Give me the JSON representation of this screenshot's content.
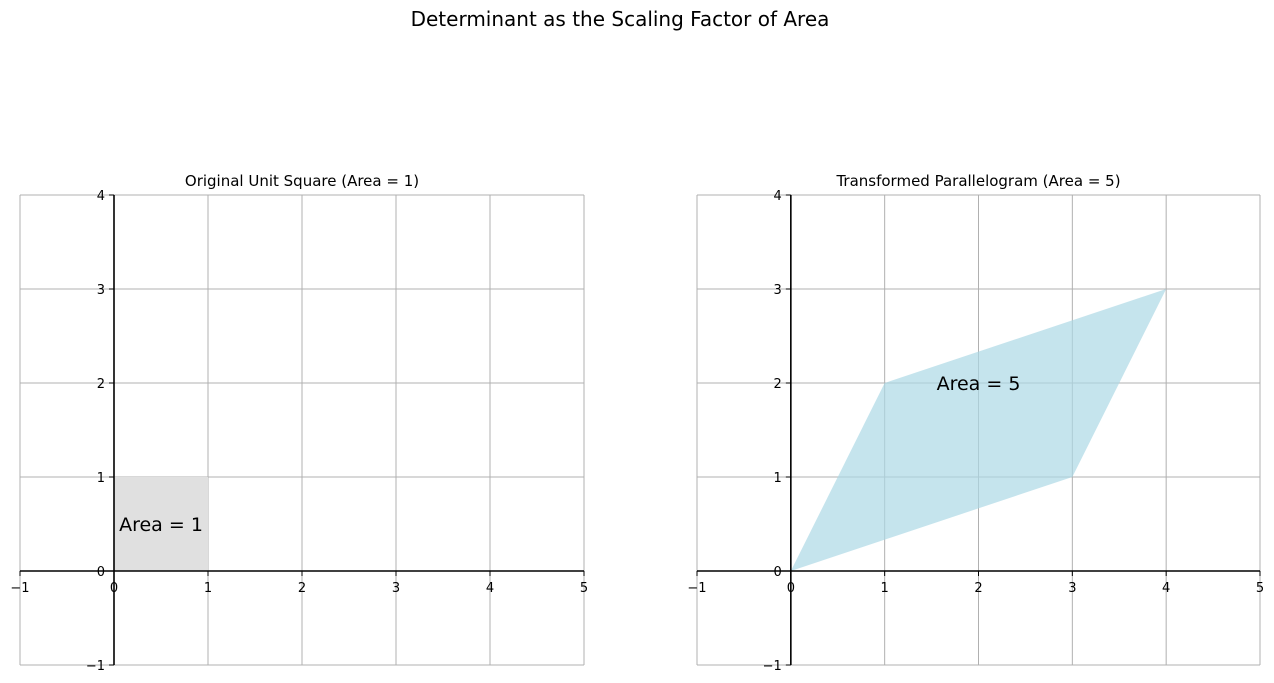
{
  "figure": {
    "suptitle": "Determinant as the Scaling Factor of Area"
  },
  "chart_data": [
    {
      "type": "area",
      "title": "Original Unit Square (Area = 1)",
      "xlabel": "",
      "ylabel": "",
      "xlim": [
        -1,
        5
      ],
      "ylim": [
        -1,
        4
      ],
      "xticks": [
        -1,
        0,
        1,
        2,
        3,
        4,
        5
      ],
      "yticks": [
        -1,
        0,
        1,
        2,
        3,
        4
      ],
      "xtick_labels": [
        "−1",
        "0",
        "1",
        "2",
        "3",
        "4",
        "5"
      ],
      "ytick_labels": [
        "−1",
        "0",
        "1",
        "2",
        "3",
        "4"
      ],
      "grid": true,
      "polygon": [
        [
          0,
          0
        ],
        [
          1,
          0
        ],
        [
          1,
          1
        ],
        [
          0,
          1
        ]
      ],
      "fill_color": "#e0e0e0",
      "annotation": {
        "text": "Area = 1",
        "x": 0.5,
        "y": 0.5
      }
    },
    {
      "type": "area",
      "title": "Transformed Parallelogram (Area = 5)",
      "xlabel": "",
      "ylabel": "",
      "xlim": [
        -1,
        5
      ],
      "ylim": [
        -1,
        4
      ],
      "xticks": [
        -1,
        0,
        1,
        2,
        3,
        4,
        5
      ],
      "yticks": [
        -1,
        0,
        1,
        2,
        3,
        4
      ],
      "xtick_labels": [
        "−1",
        "0",
        "1",
        "2",
        "3",
        "4",
        "5"
      ],
      "ytick_labels": [
        "−1",
        "0",
        "1",
        "2",
        "3",
        "4"
      ],
      "grid": true,
      "polygon": [
        [
          0,
          0
        ],
        [
          3,
          1
        ],
        [
          4,
          3
        ],
        [
          1,
          2
        ]
      ],
      "fill_color": "#add8e6",
      "annotation": {
        "text": "Area = 5",
        "x": 2,
        "y": 2
      }
    }
  ]
}
